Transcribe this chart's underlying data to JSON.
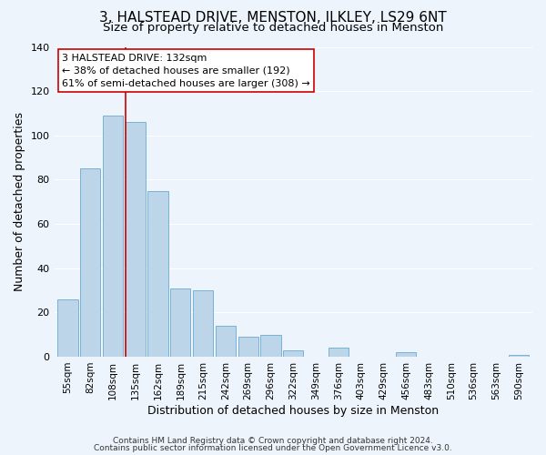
{
  "title": "3, HALSTEAD DRIVE, MENSTON, ILKLEY, LS29 6NT",
  "subtitle": "Size of property relative to detached houses in Menston",
  "xlabel": "Distribution of detached houses by size in Menston",
  "ylabel": "Number of detached properties",
  "categories": [
    "55sqm",
    "82sqm",
    "108sqm",
    "135sqm",
    "162sqm",
    "189sqm",
    "215sqm",
    "242sqm",
    "269sqm",
    "296sqm",
    "322sqm",
    "349sqm",
    "376sqm",
    "403sqm",
    "429sqm",
    "456sqm",
    "483sqm",
    "510sqm",
    "536sqm",
    "563sqm",
    "590sqm"
  ],
  "values": [
    26,
    85,
    109,
    106,
    75,
    31,
    30,
    14,
    9,
    10,
    3,
    0,
    4,
    0,
    0,
    2,
    0,
    0,
    0,
    0,
    1
  ],
  "bar_color": "#bcd5e8",
  "bar_edge_color": "#6aaad4",
  "vline_x_index": 3,
  "vline_color": "#cc0000",
  "annotation_line1": "3 HALSTEAD DRIVE: 132sqm",
  "annotation_line2": "← 38% of detached houses are smaller (192)",
  "annotation_line3": "61% of semi-detached houses are larger (308) →",
  "annotation_box_facecolor": "#ffffff",
  "annotation_box_edgecolor": "#cc0000",
  "ylim": [
    0,
    140
  ],
  "yticks": [
    0,
    20,
    40,
    60,
    80,
    100,
    120,
    140
  ],
  "footer_line1": "Contains HM Land Registry data © Crown copyright and database right 2024.",
  "footer_line2": "Contains public sector information licensed under the Open Government Licence v3.0.",
  "background_color": "#eef4fb",
  "grid_color": "#ffffff",
  "title_fontsize": 11,
  "subtitle_fontsize": 9.5,
  "tick_fontsize": 7.5,
  "ylabel_fontsize": 9,
  "xlabel_fontsize": 9,
  "annotation_fontsize": 8,
  "footer_fontsize": 6.5
}
